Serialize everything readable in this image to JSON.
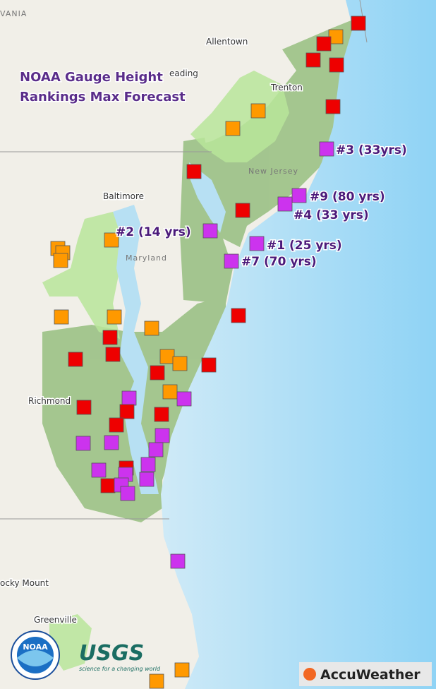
{
  "title": {
    "lines": [
      "NOAA Gauge Height",
      "Rankings Max Forecast"
    ]
  },
  "places": [
    "VANIA",
    "Allentown",
    "eading",
    "Trenton",
    "New Jersey",
    "Baltimore",
    "Maryland",
    "Richmond",
    "ocky Mount",
    "Greenville"
  ],
  "annotations": [
    "#3 (33yrs)",
    "#9 (80 yrs)",
    "#4 (33 yrs)",
    "#2 (14 yrs)",
    "#1 (25 yrs)",
    "#7 (70 yrs)"
  ],
  "logos": {
    "noaa": "NOAA",
    "usgs": "USGS",
    "usgs_tagline": "science for a changing world",
    "accuweather": "AccuWeather"
  }
}
